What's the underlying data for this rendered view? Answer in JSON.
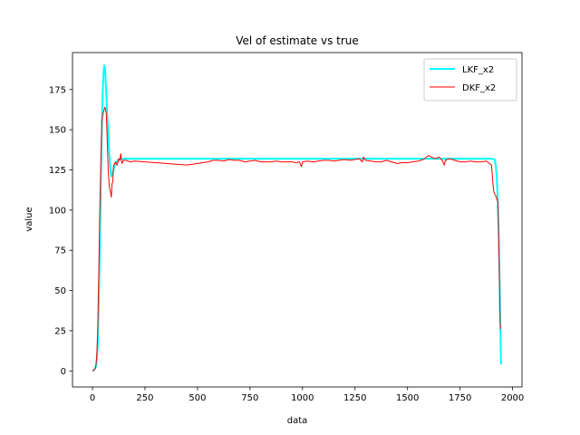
{
  "chart_data": {
    "type": "line",
    "title": "Vel of estimate vs true",
    "xlabel": "data",
    "ylabel": "value",
    "xlim": [
      -95,
      2045
    ],
    "ylim": [
      -10,
      198
    ],
    "xticks": [
      0,
      250,
      500,
      750,
      1000,
      1250,
      1500,
      1750,
      2000
    ],
    "yticks": [
      0,
      25,
      50,
      75,
      100,
      125,
      150,
      175
    ],
    "legend_position": "top-right",
    "grid": false,
    "series": [
      {
        "name": "LKF_x2",
        "color": "#00ffff",
        "line_width": 2,
        "points": [
          [
            0,
            0
          ],
          [
            10,
            1
          ],
          [
            18,
            3
          ],
          [
            25,
            15
          ],
          [
            32,
            55
          ],
          [
            38,
            100
          ],
          [
            43,
            140
          ],
          [
            48,
            170
          ],
          [
            52,
            184
          ],
          [
            56,
            190
          ],
          [
            60,
            188
          ],
          [
            65,
            175
          ],
          [
            70,
            160
          ],
          [
            75,
            148
          ],
          [
            80,
            135
          ],
          [
            85,
            126
          ],
          [
            90,
            121
          ],
          [
            95,
            122
          ],
          [
            100,
            125
          ],
          [
            110,
            129
          ],
          [
            120,
            131
          ],
          [
            130,
            131.5
          ],
          [
            150,
            132
          ],
          [
            300,
            132
          ],
          [
            500,
            132
          ],
          [
            750,
            132
          ],
          [
            1000,
            132
          ],
          [
            1250,
            132
          ],
          [
            1500,
            132
          ],
          [
            1750,
            132
          ],
          [
            1900,
            132
          ],
          [
            1915,
            131.5
          ],
          [
            1920,
            128
          ],
          [
            1925,
            120
          ],
          [
            1930,
            105
          ],
          [
            1935,
            80
          ],
          [
            1940,
            45
          ],
          [
            1943,
            20
          ],
          [
            1945,
            4
          ]
        ]
      },
      {
        "name": "DKF_x2",
        "color": "#ff0000",
        "line_width": 1,
        "points": [
          [
            0,
            0
          ],
          [
            8,
            0.5
          ],
          [
            15,
            2
          ],
          [
            20,
            8
          ],
          [
            25,
            25
          ],
          [
            30,
            60
          ],
          [
            35,
            100
          ],
          [
            40,
            130
          ],
          [
            45,
            155
          ],
          [
            50,
            160
          ],
          [
            55,
            162
          ],
          [
            58,
            164
          ],
          [
            62,
            163
          ],
          [
            66,
            160
          ],
          [
            70,
            145
          ],
          [
            75,
            125
          ],
          [
            80,
            115
          ],
          [
            85,
            112
          ],
          [
            90,
            108
          ],
          [
            93,
            116
          ],
          [
            97,
            118
          ],
          [
            100,
            127
          ],
          [
            105,
            129
          ],
          [
            110,
            130
          ],
          [
            118,
            128
          ],
          [
            125,
            132
          ],
          [
            130,
            131
          ],
          [
            135,
            135
          ],
          [
            140,
            129
          ],
          [
            148,
            131
          ],
          [
            160,
            131
          ],
          [
            180,
            130
          ],
          [
            200,
            130.5
          ],
          [
            250,
            130
          ],
          [
            300,
            129.5
          ],
          [
            350,
            129
          ],
          [
            400,
            128.5
          ],
          [
            450,
            128
          ],
          [
            500,
            129
          ],
          [
            550,
            130
          ],
          [
            575,
            131
          ],
          [
            600,
            131
          ],
          [
            625,
            130.5
          ],
          [
            650,
            131.5
          ],
          [
            675,
            131
          ],
          [
            700,
            131
          ],
          [
            725,
            130
          ],
          [
            750,
            130.5
          ],
          [
            775,
            131
          ],
          [
            800,
            130
          ],
          [
            850,
            130
          ],
          [
            875,
            130.5
          ],
          [
            900,
            130
          ],
          [
            925,
            130
          ],
          [
            950,
            130
          ],
          [
            970,
            129.5
          ],
          [
            985,
            130
          ],
          [
            995,
            127
          ],
          [
            1000,
            130
          ],
          [
            1025,
            130.5
          ],
          [
            1050,
            130
          ],
          [
            1075,
            130.5
          ],
          [
            1100,
            131
          ],
          [
            1125,
            131
          ],
          [
            1150,
            130.5
          ],
          [
            1175,
            131
          ],
          [
            1200,
            131.5
          ],
          [
            1225,
            131
          ],
          [
            1250,
            131.5
          ],
          [
            1270,
            132
          ],
          [
            1285,
            130
          ],
          [
            1290,
            133
          ],
          [
            1300,
            131
          ],
          [
            1325,
            130.5
          ],
          [
            1350,
            130
          ],
          [
            1375,
            130
          ],
          [
            1400,
            131
          ],
          [
            1425,
            130
          ],
          [
            1450,
            129
          ],
          [
            1475,
            129.5
          ],
          [
            1500,
            129.5
          ],
          [
            1525,
            130
          ],
          [
            1550,
            130.5
          ],
          [
            1575,
            131.5
          ],
          [
            1600,
            134
          ],
          [
            1615,
            133
          ],
          [
            1630,
            132
          ],
          [
            1650,
            133
          ],
          [
            1665,
            131
          ],
          [
            1675,
            128
          ],
          [
            1680,
            131
          ],
          [
            1700,
            132
          ],
          [
            1725,
            131
          ],
          [
            1750,
            130
          ],
          [
            1775,
            130
          ],
          [
            1800,
            130.5
          ],
          [
            1825,
            130
          ],
          [
            1850,
            130
          ],
          [
            1875,
            130.5
          ],
          [
            1900,
            128
          ],
          [
            1905,
            119
          ],
          [
            1910,
            112
          ],
          [
            1915,
            110
          ],
          [
            1920,
            109
          ],
          [
            1925,
            107
          ],
          [
            1930,
            105
          ],
          [
            1933,
            90
          ],
          [
            1936,
            70
          ],
          [
            1939,
            45
          ],
          [
            1941,
            30
          ],
          [
            1943,
            26
          ]
        ]
      }
    ]
  }
}
